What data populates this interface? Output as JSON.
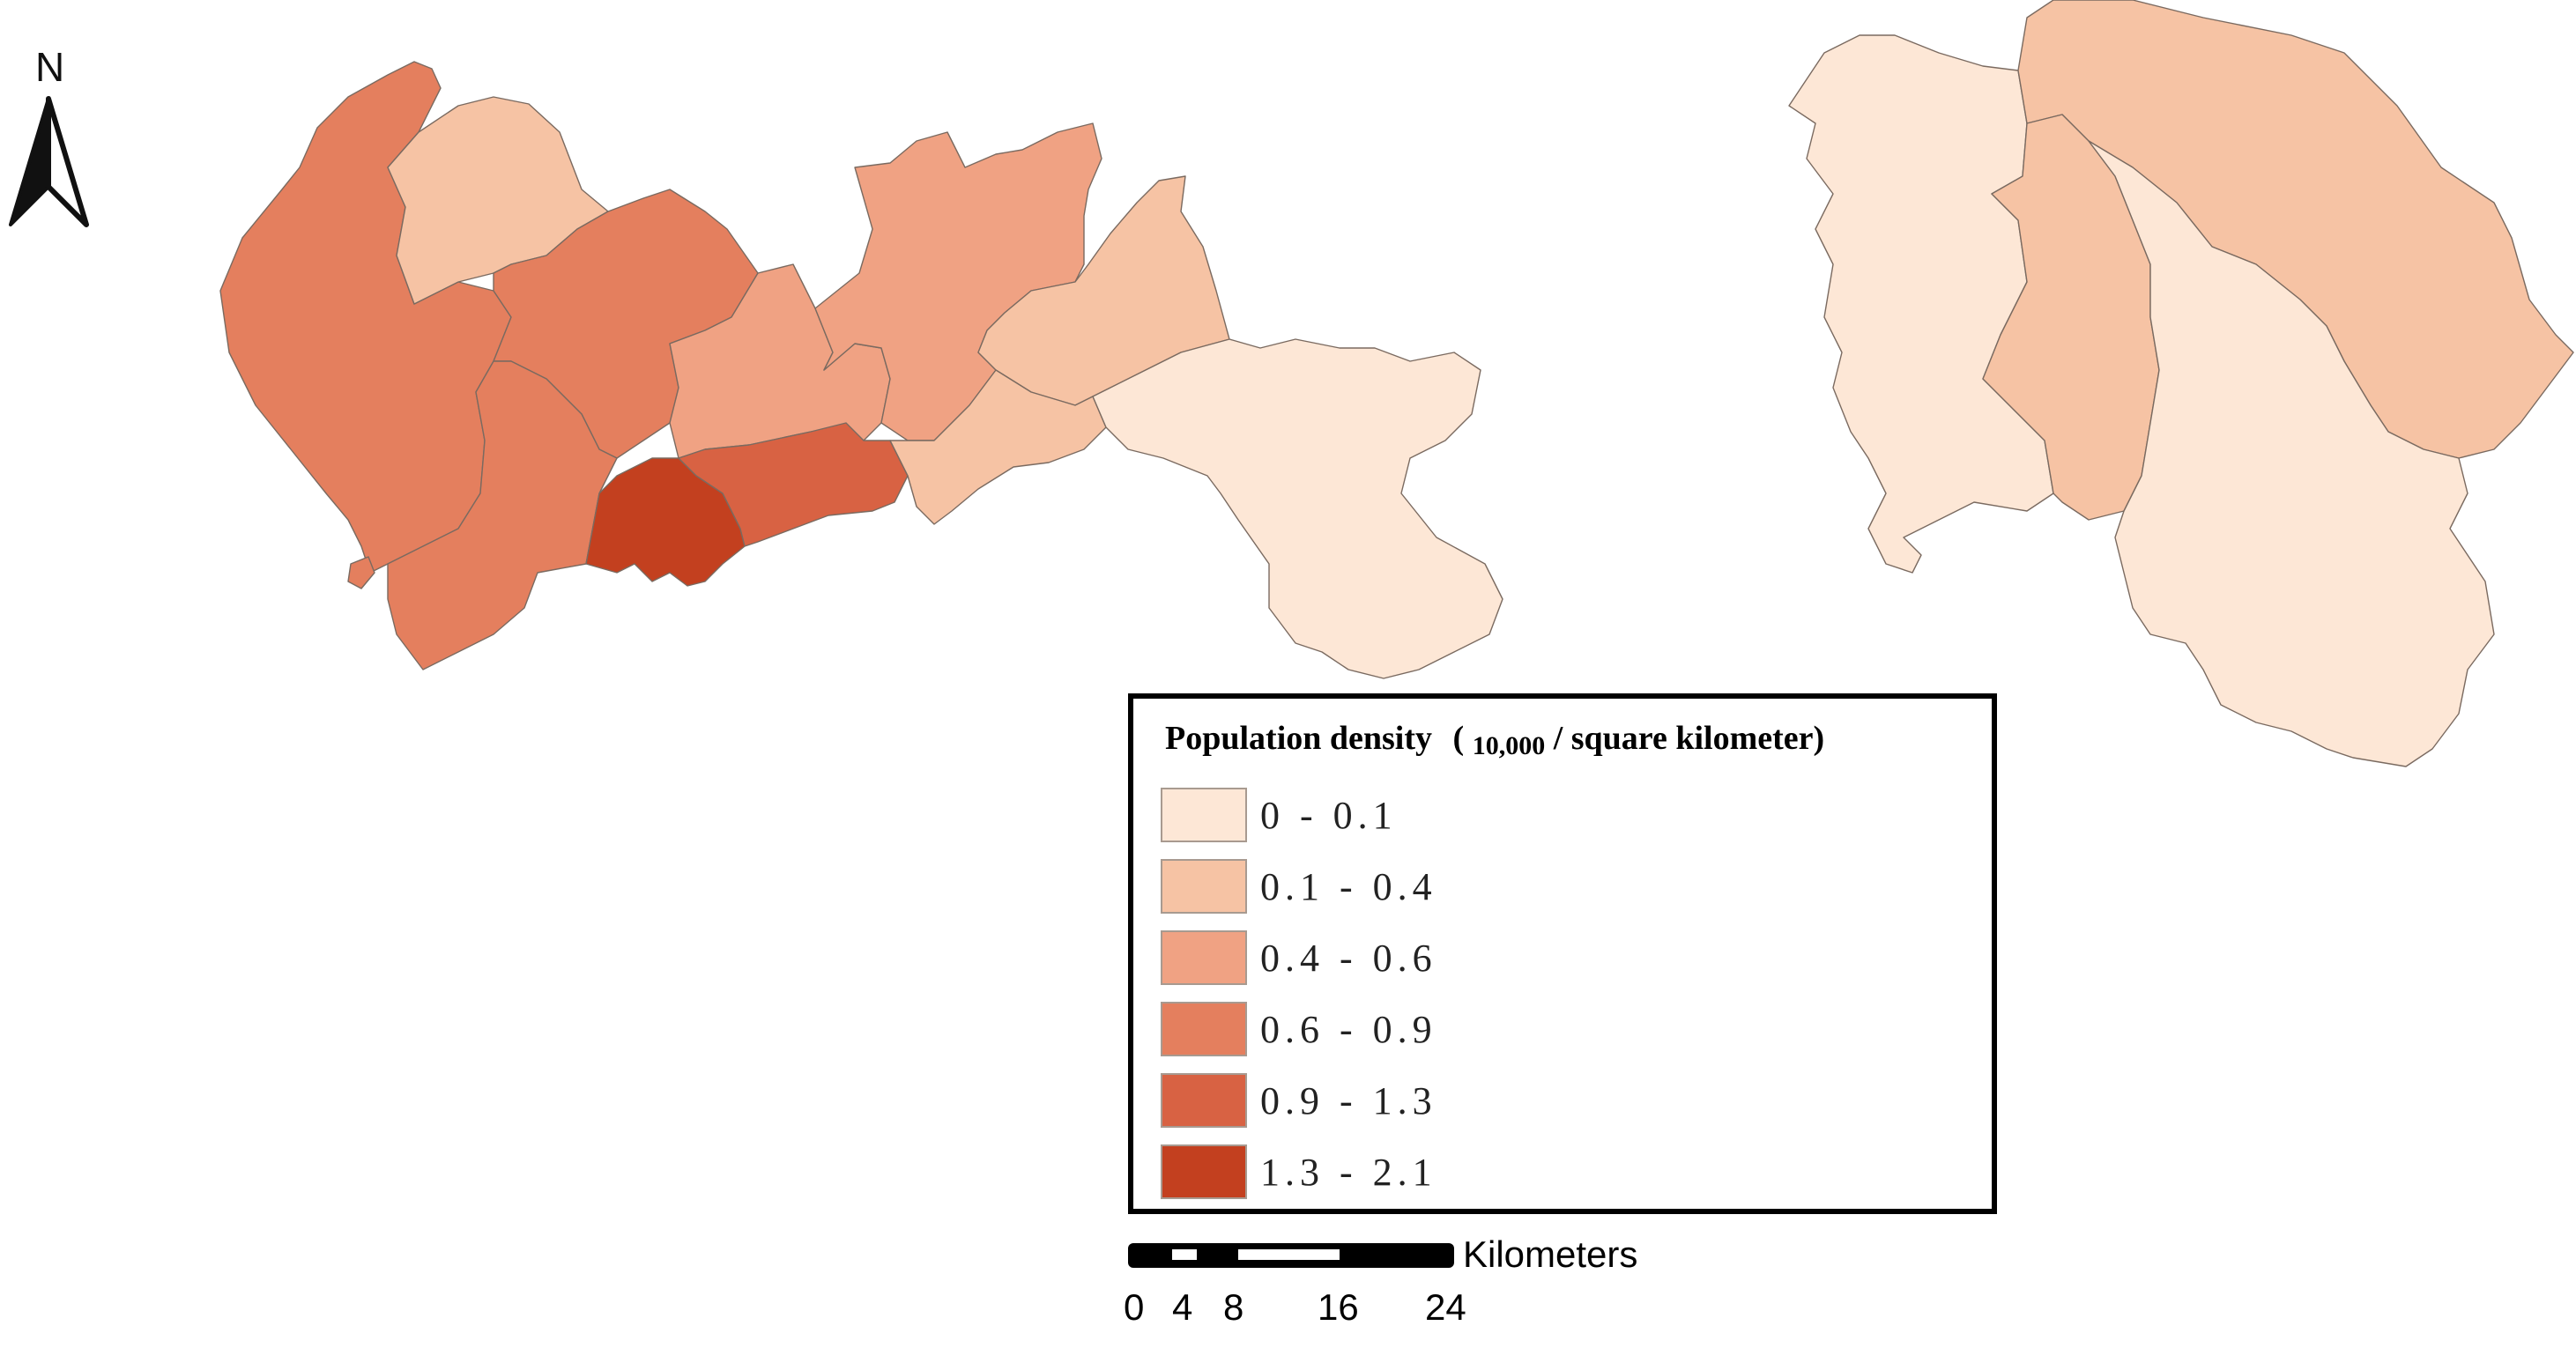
{
  "north_arrow": {
    "label": "N"
  },
  "legend": {
    "title": "Population density",
    "title_unit_open": "(",
    "title_unit_number": "10,000",
    "title_unit_rest": "/ square kilometer)",
    "classes": [
      {
        "label": "0 - 0.1",
        "color": "#fde7d6"
      },
      {
        "label": "0.1 - 0.4",
        "color": "#f6c3a4"
      },
      {
        "label": "0.4 - 0.6",
        "color": "#f0a283"
      },
      {
        "label": "0.6 - 0.9",
        "color": "#e47f5e"
      },
      {
        "label": "0.9 - 1.3",
        "color": "#d86243"
      },
      {
        "label": "1.3 - 2.1",
        "color": "#c3401f"
      }
    ]
  },
  "scale_bar": {
    "unit": "Kilometers",
    "ticks": [
      "0",
      "4",
      "8",
      "16",
      "24"
    ]
  },
  "map_regions": [
    {
      "name": "region-west-coast",
      "density_class": "0.6 - 0.9"
    },
    {
      "name": "region-northwest-upper",
      "density_class": "0.1 - 0.4"
    },
    {
      "name": "region-central-north",
      "density_class": "0.6 - 0.9"
    },
    {
      "name": "region-southwest",
      "density_class": "0.6 - 0.9"
    },
    {
      "name": "region-central-east",
      "density_class": "0.4 - 0.6"
    },
    {
      "name": "region-northeast-upper",
      "density_class": "0.4 - 0.6"
    },
    {
      "name": "region-south-center-high",
      "density_class": "1.3 - 2.1"
    },
    {
      "name": "region-south-center-east",
      "density_class": "0.9 - 1.3"
    },
    {
      "name": "region-east-upper",
      "density_class": "0.1 - 0.4"
    },
    {
      "name": "region-east-lower",
      "density_class": "0.1 - 0.4"
    },
    {
      "name": "region-east-peninsula",
      "density_class": "0 - 0.1"
    },
    {
      "name": "region-far-west",
      "density_class": "0 - 0.1"
    },
    {
      "name": "region-far-north",
      "density_class": "0.1 - 0.4"
    },
    {
      "name": "region-far-middle",
      "density_class": "0.1 - 0.4"
    },
    {
      "name": "region-far-south",
      "density_class": "0 - 0.1"
    }
  ]
}
